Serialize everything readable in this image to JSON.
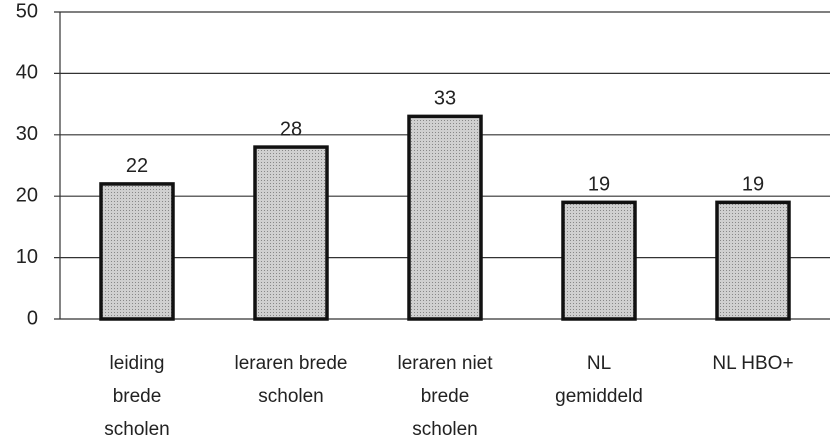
{
  "chart_data": {
    "type": "bar",
    "categories": [
      "leiding\nbrede\nscholen",
      "leraren brede\nscholen",
      "leraren niet\nbrede\nscholen",
      "NL\ngemiddeld",
      "NL HBO+"
    ],
    "values": [
      22,
      28,
      33,
      19,
      19
    ],
    "color": "#c8c8c8",
    "ylim": [
      0,
      50
    ],
    "yticks": [
      0,
      10,
      20,
      30,
      40,
      50
    ],
    "grid": true
  }
}
